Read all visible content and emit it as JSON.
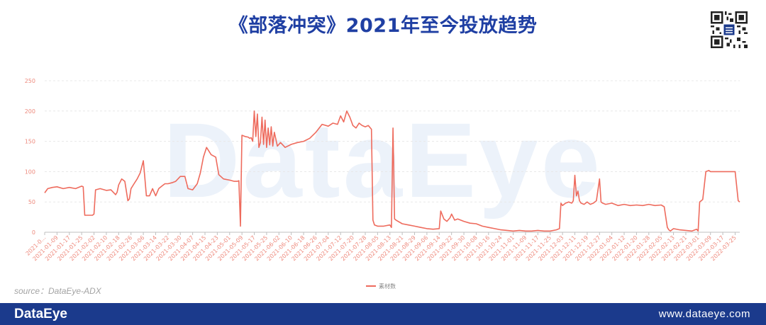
{
  "title": "《部落冲突》2021年至今投放趋势",
  "watermark": "DataEye",
  "source": "source：DataEye-ADX",
  "footer": {
    "brand": "DataEye",
    "url": "www.dataeye.com"
  },
  "colors": {
    "line": "#ee6b5d",
    "title": "#1f3fa3",
    "footer": "#1b3a8c",
    "axis_text": "#ee8a7d"
  },
  "chart_data": {
    "type": "line",
    "title": "《部落冲突》2021年至今投放趋势",
    "ylim": [
      0,
      250
    ],
    "yticks": [
      0,
      50,
      100,
      150,
      200,
      250
    ],
    "grid": true,
    "legend_position": "bottom-center",
    "x_tick_labels": [
      "2021-0...",
      "2021-01-09",
      "2021-01-17",
      "2021-01-25",
      "2021-02-02",
      "2021-02-10",
      "2021-02-18",
      "2021-02-26",
      "2021-03-06",
      "2021-03-14",
      "2021-03-22",
      "2021-03-30",
      "2021-04-07",
      "2021-04-15",
      "2021-04-23",
      "2021-05-01",
      "2021-05-09",
      "2021-05-17",
      "2021-05-25",
      "2021-06-02",
      "2021-06-10",
      "2021-06-18",
      "2021-06-26",
      "2021-07-04",
      "2021-07-12",
      "2021-07-20",
      "2021-07-28",
      "2021-08-05",
      "2021-08-13",
      "2021-08-21",
      "2021-08-29",
      "2021-09-06",
      "2021-09-14",
      "2021-09-22",
      "2021-09-30",
      "2021-10-08",
      "2021-10-16",
      "2021-10-24",
      "2021-11-01",
      "2021-11-09",
      "2021-11-17",
      "2021-11-25",
      "2021-12-03",
      "2021-12-11",
      "2021-12-19",
      "2021-12-27",
      "2022-01-04",
      "2022-01-12",
      "2022-01-20",
      "2022-01-28",
      "2022-02-05",
      "2022-02-13",
      "2022-02-21",
      "2022-03-01",
      "2022-03-09",
      "2022-03-17",
      "2022-03-25"
    ],
    "series": [
      {
        "name": "素材数",
        "x": [
          "2021-01-01",
          "2021-01-03",
          "2021-01-06",
          "2021-01-09",
          "2021-01-13",
          "2021-01-17",
          "2021-01-21",
          "2021-01-25",
          "2021-01-26",
          "2021-01-27",
          "2021-02-01",
          "2021-02-02",
          "2021-02-03",
          "2021-02-06",
          "2021-02-10",
          "2021-02-13",
          "2021-02-16",
          "2021-02-17",
          "2021-02-18",
          "2021-02-20",
          "2021-02-22",
          "2021-02-24",
          "2021-02-25",
          "2021-02-26",
          "2021-02-28",
          "2021-03-02",
          "2021-03-04",
          "2021-03-06",
          "2021-03-07",
          "2021-03-08",
          "2021-03-10",
          "2021-03-12",
          "2021-03-14",
          "2021-03-16",
          "2021-03-18",
          "2021-03-20",
          "2021-03-22",
          "2021-03-25",
          "2021-03-27",
          "2021-03-30",
          "2021-04-02",
          "2021-04-04",
          "2021-04-07",
          "2021-04-10",
          "2021-04-12",
          "2021-04-14",
          "2021-04-16",
          "2021-04-19",
          "2021-04-22",
          "2021-04-24",
          "2021-04-27",
          "2021-05-01",
          "2021-05-04",
          "2021-05-06",
          "2021-05-07",
          "2021-05-08",
          "2021-05-09",
          "2021-05-11",
          "2021-05-13",
          "2021-05-14",
          "2021-05-15",
          "2021-05-16",
          "2021-05-17",
          "2021-05-18",
          "2021-05-19",
          "2021-05-20",
          "2021-05-21",
          "2021-05-22",
          "2021-05-23",
          "2021-05-24",
          "2021-05-25",
          "2021-05-26",
          "2021-05-27",
          "2021-05-28",
          "2021-05-29",
          "2021-05-30",
          "2021-06-01",
          "2021-06-03",
          "2021-06-06",
          "2021-06-10",
          "2021-06-14",
          "2021-06-18",
          "2021-06-22",
          "2021-06-26",
          "2021-06-30",
          "2021-07-04",
          "2021-07-07",
          "2021-07-10",
          "2021-07-12",
          "2021-07-14",
          "2021-07-16",
          "2021-07-18",
          "2021-07-20",
          "2021-07-22",
          "2021-07-24",
          "2021-07-26",
          "2021-07-28",
          "2021-07-30",
          "2021-08-01",
          "2021-08-02",
          "2021-08-03",
          "2021-08-05",
          "2021-08-09",
          "2021-08-13",
          "2021-08-14",
          "2021-08-15",
          "2021-08-16",
          "2021-08-17",
          "2021-08-21",
          "2021-08-25",
          "2021-08-29",
          "2021-09-02",
          "2021-09-06",
          "2021-09-10",
          "2021-09-14",
          "2021-09-15",
          "2021-09-17",
          "2021-09-19",
          "2021-09-21",
          "2021-09-22",
          "2021-09-24",
          "2021-09-26",
          "2021-09-30",
          "2021-10-04",
          "2021-10-08",
          "2021-10-12",
          "2021-10-16",
          "2021-10-20",
          "2021-10-24",
          "2021-10-28",
          "2021-11-01",
          "2021-11-05",
          "2021-11-09",
          "2021-11-13",
          "2021-11-17",
          "2021-11-21",
          "2021-11-25",
          "2021-11-29",
          "2021-12-01",
          "2021-12-02",
          "2021-12-03",
          "2021-12-05",
          "2021-12-07",
          "2021-12-09",
          "2021-12-10",
          "2021-12-11",
          "2021-12-12",
          "2021-12-13",
          "2021-12-14",
          "2021-12-15",
          "2021-12-17",
          "2021-12-19",
          "2021-12-21",
          "2021-12-23",
          "2021-12-25",
          "2021-12-27",
          "2021-12-28",
          "2021-12-29",
          "2021-12-31",
          "2022-01-04",
          "2022-01-08",
          "2022-01-12",
          "2022-01-16",
          "2022-01-20",
          "2022-01-24",
          "2022-01-28",
          "2022-02-01",
          "2022-02-05",
          "2022-02-07",
          "2022-02-09",
          "2022-02-10",
          "2022-02-11",
          "2022-02-13",
          "2022-02-17",
          "2022-02-21",
          "2022-02-25",
          "2022-02-28",
          "2022-03-01",
          "2022-03-02",
          "2022-03-04",
          "2022-03-06",
          "2022-03-08",
          "2022-03-09",
          "2022-03-13",
          "2022-03-17",
          "2022-03-21",
          "2022-03-24",
          "2022-03-25",
          "2022-03-27",
          "2022-03-28"
        ],
        "y": [
          65,
          72,
          74,
          75,
          72,
          74,
          72,
          76,
          75,
          28,
          28,
          30,
          70,
          72,
          69,
          70,
          62,
          66,
          78,
          88,
          84,
          52,
          55,
          72,
          80,
          88,
          98,
          118,
          90,
          60,
          60,
          72,
          60,
          72,
          76,
          80,
          80,
          82,
          84,
          92,
          92,
          72,
          70,
          80,
          98,
          124,
          140,
          128,
          124,
          95,
          88,
          86,
          84,
          84,
          85,
          10,
          160,
          158,
          157,
          155,
          156,
          150,
          200,
          158,
          195,
          140,
          148,
          190,
          145,
          185,
          140,
          172,
          144,
          174,
          142,
          165,
          142,
          148,
          140,
          145,
          148,
          150,
          155,
          165,
          178,
          175,
          180,
          178,
          192,
          182,
          200,
          190,
          176,
          172,
          180,
          176,
          174,
          176,
          170,
          20,
          12,
          10,
          10,
          12,
          8,
          172,
          22,
          20,
          14,
          12,
          10,
          8,
          6,
          5,
          6,
          35,
          22,
          18,
          24,
          30,
          20,
          22,
          18,
          15,
          14,
          10,
          8,
          6,
          4,
          3,
          2,
          3,
          2,
          2,
          3,
          2,
          2,
          4,
          6,
          48,
          44,
          48,
          50,
          48,
          52,
          94,
          60,
          68,
          52,
          48,
          46,
          50,
          46,
          48,
          52,
          88,
          50,
          48,
          46,
          48,
          44,
          46,
          44,
          45,
          44,
          46,
          44,
          45,
          42,
          8,
          4,
          2,
          6,
          4,
          3,
          2,
          5,
          2,
          50,
          54,
          100,
          102,
          100,
          100,
          100,
          100,
          100,
          100,
          52,
          50
        ]
      }
    ]
  }
}
